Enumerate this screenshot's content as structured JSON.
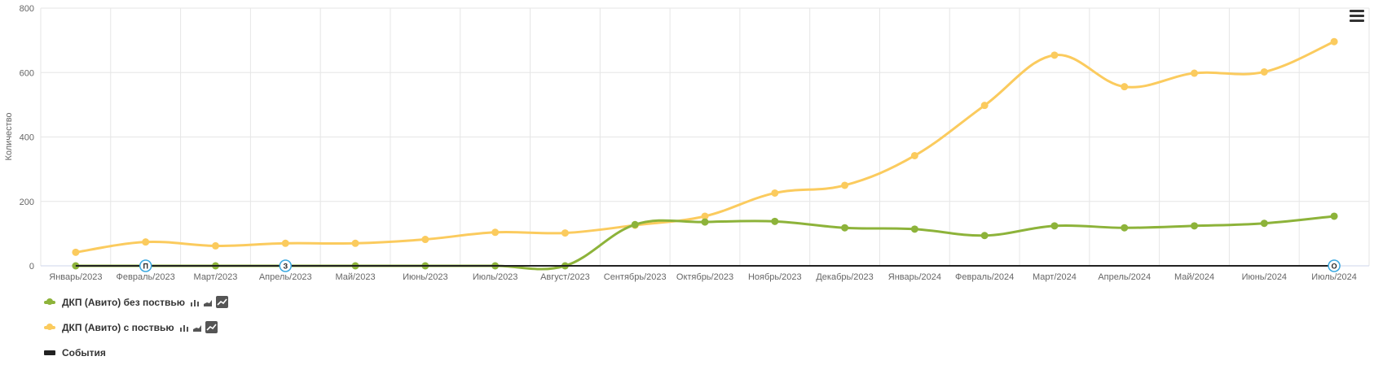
{
  "chart_data": {
    "type": "line",
    "ylabel": "Количество",
    "ylim": [
      0,
      800
    ],
    "yticks": [
      0,
      200,
      400,
      600,
      800
    ],
    "grid": true,
    "categories": [
      "Январь/2023",
      "Февраль/2023",
      "Март/2023",
      "Апрель/2023",
      "Май/2023",
      "Июнь/2023",
      "Июль/2023",
      "Август/2023",
      "Сентябрь/2023",
      "Октябрь/2023",
      "Ноябрь/2023",
      "Декабрь/2023",
      "Январь/2024",
      "Февраль/2024",
      "Март/2024",
      "Апрель/2024",
      "Май/2024",
      "Июнь/2024",
      "Июль/2024"
    ],
    "series": [
      {
        "name": "ДКП (Авито) без поствью",
        "color": "#8db33a",
        "values": [
          0,
          0,
          0,
          0,
          0,
          0,
          0,
          0,
          128,
          136,
          138,
          118,
          114,
          94,
          124,
          118,
          124,
          132,
          154
        ]
      },
      {
        "name": "ДКП (Авито) с поствью",
        "color": "#fbcb5e",
        "values": [
          42,
          74,
          62,
          70,
          70,
          82,
          104,
          102,
          126,
          154,
          226,
          250,
          342,
          498,
          654,
          556,
          598,
          602,
          696
        ]
      }
    ],
    "events": {
      "name": "События",
      "markers": [
        {
          "category": "Февраль/2023",
          "label": "П"
        },
        {
          "category": "Апрель/2023",
          "label": "З"
        },
        {
          "category": "Июль/2024",
          "label": "О"
        }
      ]
    },
    "legend": "bottom-left"
  },
  "menu_icon": "hamburger-menu-icon"
}
